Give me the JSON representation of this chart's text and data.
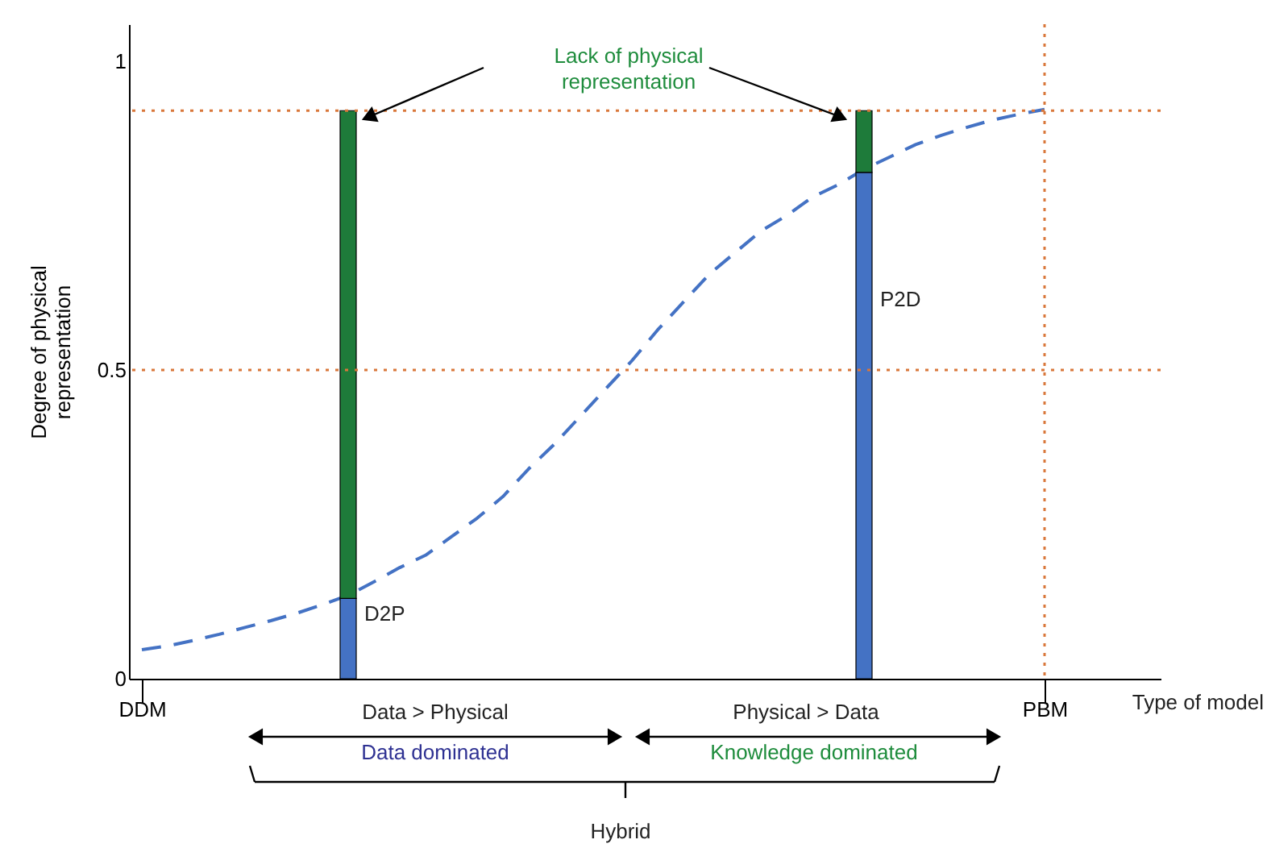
{
  "chart_data": {
    "type": "bar",
    "stacked": true,
    "xlabel": "Type of model",
    "ylabel": "Degree of physical representation",
    "categories": [
      "DDM",
      null,
      null,
      null,
      null,
      null,
      null,
      null,
      null,
      null,
      null,
      null,
      null,
      null,
      null,
      null,
      null,
      null,
      null,
      null,
      null,
      null,
      null,
      null,
      null,
      null,
      null,
      null,
      null,
      null,
      null,
      null,
      null,
      null,
      null,
      "PBM",
      null,
      null,
      null,
      null
    ],
    "series": [
      {
        "color": "#4472c4",
        "values": [
          null,
          null,
          null,
          null,
          null,
          null,
          null,
          null,
          0.13,
          null,
          null,
          null,
          null,
          null,
          null,
          null,
          null,
          null,
          null,
          null,
          null,
          null,
          null,
          null,
          null,
          null,
          null,
          null,
          0.82,
          null,
          null,
          null,
          null,
          null,
          null,
          null,
          null,
          null,
          null,
          null
        ]
      },
      {
        "color": "#1e7b3a",
        "values": [
          null,
          null,
          null,
          null,
          null,
          null,
          null,
          null,
          0.79,
          null,
          null,
          null,
          null,
          null,
          null,
          null,
          null,
          null,
          null,
          null,
          null,
          null,
          null,
          null,
          null,
          null,
          null,
          null,
          0.1,
          null,
          null,
          null,
          null,
          null,
          null,
          null,
          null,
          null,
          null,
          null
        ]
      },
      {
        "type": "line",
        "color": "#4472c4",
        "line_style": "dashed",
        "marker": "none",
        "values": [
          0.047,
          0.053,
          0.062,
          0.072,
          0.083,
          0.094,
          0.106,
          0.12,
          0.135,
          0.157,
          0.18,
          0.2,
          0.23,
          0.26,
          0.295,
          0.34,
          0.38,
          0.425,
          0.47,
          0.515,
          0.565,
          0.61,
          0.655,
          0.69,
          0.725,
          0.75,
          0.78,
          0.8,
          0.825,
          0.845,
          0.865,
          0.88,
          0.893,
          0.905,
          0.914,
          0.922,
          null,
          null,
          null,
          null
        ]
      }
    ],
    "ylim": [
      0,
      1.06
    ],
    "yticks": [
      0,
      0.5,
      1
    ],
    "grid": false,
    "ref_lines": [
      {
        "axis": "y",
        "value": 0.92,
        "color": "#d9773a",
        "line_style": "dotted"
      },
      {
        "axis": "y",
        "value": 0.5,
        "color": "#d9773a",
        "line_style": "dotted"
      },
      {
        "axis": "x",
        "value": "PBM",
        "color": "#d9773a",
        "line_style": "dotted"
      }
    ],
    "annotations": [
      "D2P",
      "P2D",
      "Lack of physical\nrepresentation",
      "Data > Physical",
      "Data dominated",
      "Physical > Data",
      "Knowledge dominated",
      "Hybrid"
    ]
  }
}
